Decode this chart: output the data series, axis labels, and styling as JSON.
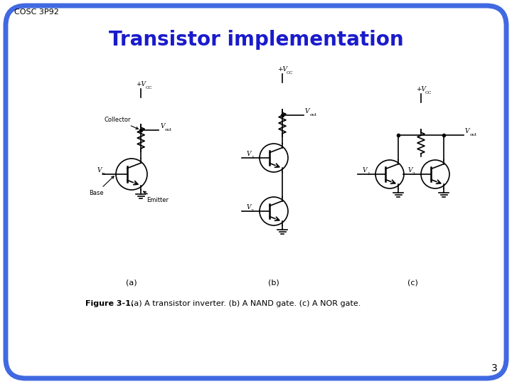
{
  "title": "Transistor implementation",
  "slide_label": "COSC 3P92",
  "page_number": "3",
  "background_color": "#ffffff",
  "border_color": "#4169E1",
  "title_color": "#1a1aCC",
  "circuit_color": "#000000",
  "label_color": "#000000",
  "caption_bold": "Figure 3-1.",
  "caption_rest": "  (a) A transistor inverter. (b) A NAND gate. (c) A NOR gate."
}
